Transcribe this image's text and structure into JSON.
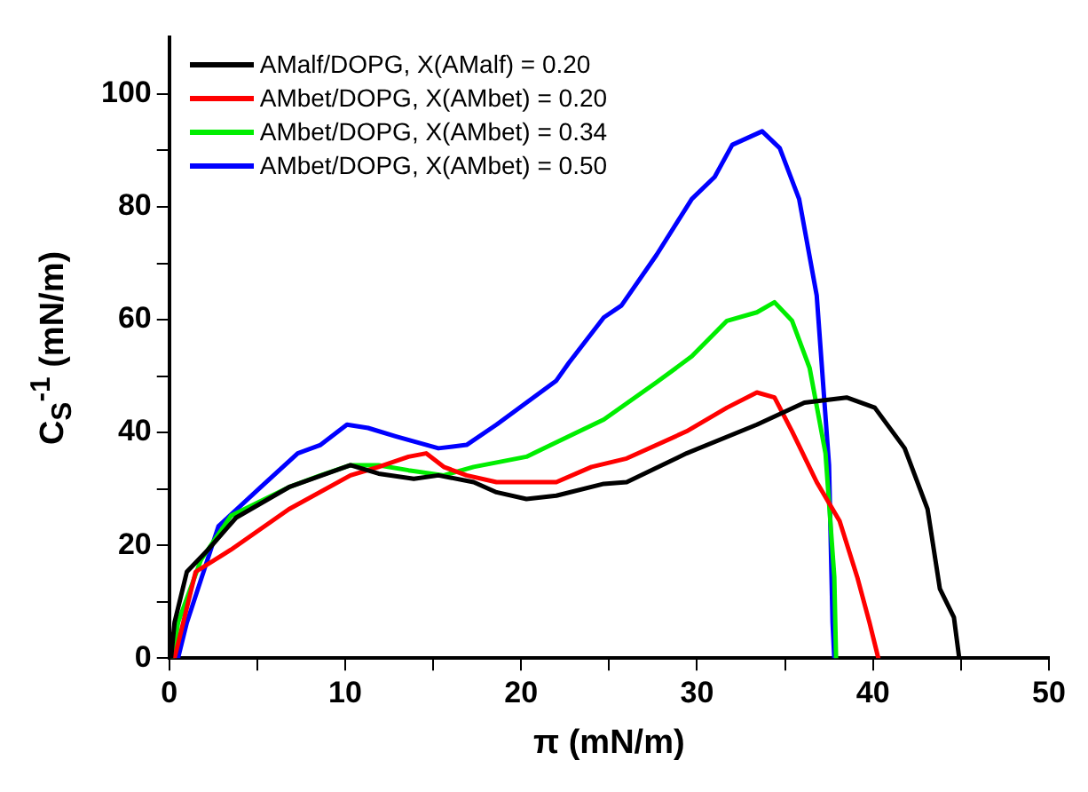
{
  "chart_data": {
    "type": "line",
    "xlabel": "π (mN/m)",
    "ylabel": "C$_{S}$$^{-1}$ (mN/m)",
    "xlim": [
      0,
      50
    ],
    "ylim": [
      0,
      110
    ],
    "xticks": [
      0,
      {
        "value": 5,
        "label": null
      },
      10,
      {
        "value": 15,
        "label": null
      },
      20,
      {
        "value": 25,
        "label": null
      },
      30,
      {
        "value": 35,
        "label": null
      },
      40,
      {
        "value": 45,
        "label": null
      },
      50
    ],
    "yticks": [
      0,
      {
        "value": 10,
        "label": null
      },
      20,
      {
        "value": 30,
        "label": null
      },
      40,
      {
        "value": 50,
        "label": null
      },
      60,
      {
        "value": 70,
        "label": null
      },
      80,
      {
        "value": 90,
        "label": null
      },
      100
    ],
    "grid": false,
    "legend": "top left",
    "marker": "none",
    "line_style": "solid",
    "series": [
      {
        "name": "AMalf/DOPG, X(AMalf) = 0.20",
        "color": "#000000",
        "x": [
          0.1,
          0.3,
          1.0,
          2.2,
          3.8,
          6.8,
          10.3,
          11.9,
          13.9,
          15.3,
          17.3,
          18.6,
          20.3,
          22,
          24.7,
          26,
          29.4,
          33.4,
          36.1,
          38.5,
          40.1,
          41.8,
          43.1,
          43.8,
          44.6,
          44.9
        ],
        "values": [
          0,
          6.3,
          15.3,
          19.2,
          24.9,
          30.3,
          34.2,
          32.7,
          31.8,
          32.4,
          31.2,
          29.4,
          28.2,
          28.8,
          30.9,
          31.2,
          36.3,
          41.4,
          45.3,
          46.2,
          44.4,
          37.2,
          26.4,
          12.3,
          7.2,
          0
        ]
      },
      {
        "name": "AMbet/DOPG, X(AMbet) = 0.20",
        "color": "#ff0000",
        "x": [
          0.3,
          1.5,
          3.5,
          6.8,
          10.3,
          11.9,
          13.6,
          14.6,
          15.6,
          16.9,
          18.6,
          22,
          24,
          26,
          29.4,
          31.7,
          33.4,
          34.4,
          35.4,
          36.8,
          38.1,
          39.1,
          39.8,
          40.3
        ],
        "values": [
          0,
          15.3,
          19.2,
          26.4,
          32.4,
          33.9,
          35.7,
          36.3,
          33.9,
          32.4,
          31.2,
          31.2,
          33.9,
          35.4,
          40.2,
          44.4,
          47.1,
          46.2,
          40.2,
          31.2,
          24.3,
          14.4,
          6.3,
          0
        ]
      },
      {
        "name": "AMbet/DOPG, X(AMbet) = 0.34",
        "color": "#00ee00",
        "x": [
          0.2,
          0.5,
          1.8,
          3.5,
          6.8,
          8.6,
          10.3,
          11.9,
          13.6,
          15.6,
          17.3,
          20.3,
          22.7,
          24.7,
          27.7,
          29.7,
          31.7,
          33.4,
          34.4,
          35.4,
          36.4,
          37.3,
          37.8,
          37.9
        ],
        "values": [
          0,
          6.3,
          17.4,
          25.2,
          30.3,
          32.4,
          34.2,
          34.2,
          33.3,
          32.4,
          33.9,
          35.7,
          39.3,
          42.3,
          48.9,
          53.5,
          59.8,
          61.3,
          63.1,
          59.8,
          51.4,
          36.3,
          14.4,
          0
        ]
      },
      {
        "name": "AMbet/DOPG, X(AMbet) = 0.50",
        "color": "#0000ff",
        "x": [
          0.5,
          1.0,
          2.8,
          5.2,
          7.3,
          8.6,
          10.1,
          11.3,
          12.9,
          15.3,
          16.9,
          18.6,
          20.3,
          22,
          22.7,
          24.7,
          25.7,
          27.7,
          29.7,
          31,
          32,
          33.7,
          34.7,
          35.8,
          36.8,
          37.5,
          37.7,
          37.8
        ],
        "values": [
          0,
          6.3,
          23.4,
          30.3,
          36.3,
          37.8,
          41.4,
          40.8,
          39.3,
          37.2,
          37.8,
          41.4,
          45.3,
          49.2,
          52.3,
          60.4,
          62.5,
          71.5,
          81.4,
          85.3,
          91,
          93.4,
          90.4,
          81.4,
          64.3,
          34.2,
          6.3,
          0
        ]
      }
    ]
  }
}
